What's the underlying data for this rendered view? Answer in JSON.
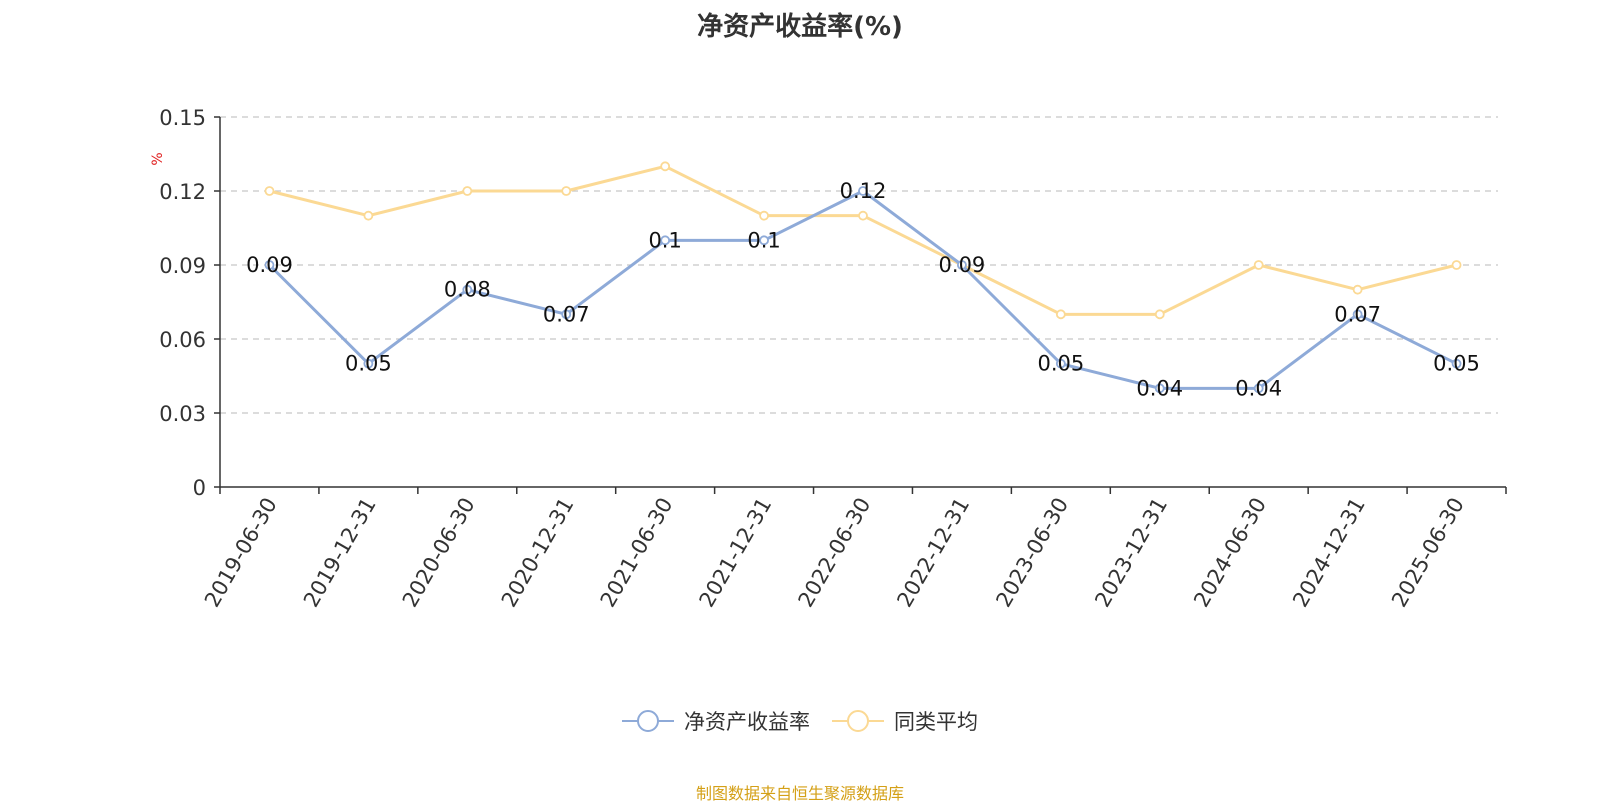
{
  "chart_data": {
    "type": "line",
    "title": "净资产收益率(%)",
    "ylabel": "%",
    "ylim": [
      0,
      0.15
    ],
    "yticks": [
      "0",
      "0.03",
      "0.06",
      "0.09",
      "0.12",
      "0.15"
    ],
    "grid": true,
    "legend_position": "bottom-center",
    "categories": [
      "2019-06-30",
      "2019-12-31",
      "2020-06-30",
      "2020-12-31",
      "2021-06-30",
      "2021-12-31",
      "2022-06-30",
      "2022-12-31",
      "2023-06-30",
      "2023-12-31",
      "2024-06-30",
      "2024-12-31",
      "2025-06-30"
    ],
    "series": [
      {
        "name": "净资产收益率",
        "color": "#8eaad8",
        "show_labels": true,
        "values": [
          0.09,
          0.05,
          0.08,
          0.07,
          0.1,
          0.1,
          0.12,
          0.09,
          0.05,
          0.04,
          0.04,
          0.07,
          0.05
        ]
      },
      {
        "name": "同类平均",
        "color": "#fbd994",
        "show_labels": false,
        "values": [
          0.12,
          0.11,
          0.12,
          0.12,
          0.13,
          0.11,
          0.11,
          0.09,
          0.07,
          0.07,
          0.09,
          0.08,
          0.09
        ]
      }
    ]
  },
  "source_note": "制图数据来自恒生聚源数据库"
}
